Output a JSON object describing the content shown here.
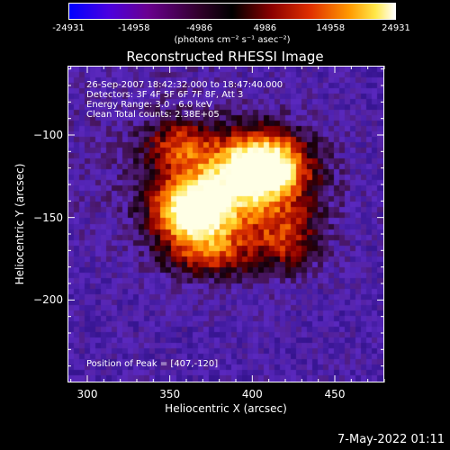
{
  "colorbar": {
    "ticks": [
      "-24931",
      "-14958",
      "-4986",
      "4986",
      "14958",
      "24931"
    ],
    "unit": "(photons cm⁻² s⁻¹ asec⁻²)"
  },
  "chart_data": {
    "type": "heatmap",
    "title": "Reconstructed RHESSI Image",
    "xlabel": "Heliocentric X (arcsec)",
    "ylabel": "Heliocentric Y (arcsec)",
    "xlim": [
      288,
      480
    ],
    "ylim": [
      -250,
      -58
    ],
    "xticks": [
      "300",
      "350",
      "400",
      "450"
    ],
    "yticks": [
      "-100",
      "-150",
      "-200"
    ],
    "value_range": [
      -24931,
      24931
    ],
    "peak": [
      407,
      -120
    ],
    "annotations": [
      "26-Sep-2007 18:42:32.000 to 18:47:40.000",
      "Detectors: 3F 4F 5F 6F 7F 8F, Att 3",
      "Energy Range: 3.0 - 6.0 keV",
      "Clean      Total counts: 2.38E+05"
    ],
    "peak_label": "Position of Peak = [407,-120]"
  },
  "timestamp": "7-May-2022 01:11"
}
